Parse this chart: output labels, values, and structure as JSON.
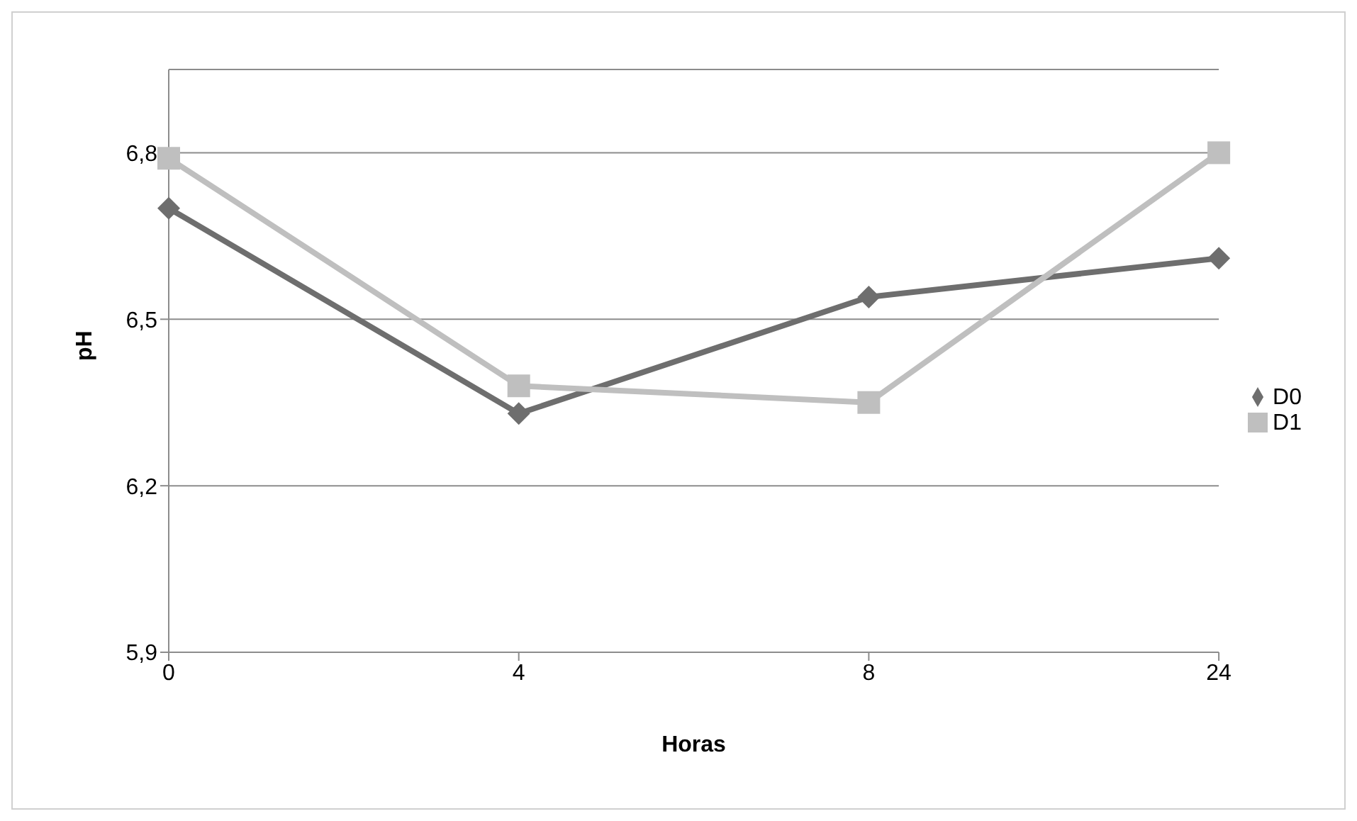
{
  "chart_data": {
    "type": "line",
    "xlabel": "Horas",
    "ylabel": "pH",
    "categories": [
      "0",
      "4",
      "8",
      "24"
    ],
    "series": [
      {
        "name": "D0",
        "color": "#6e6e6e",
        "marker": "diamond",
        "values": [
          6.7,
          6.33,
          6.54,
          6.61
        ]
      },
      {
        "name": "D1",
        "color": "#bfbfbf",
        "marker": "square",
        "values": [
          6.79,
          6.38,
          6.35,
          6.8
        ]
      }
    ],
    "ylim": [
      5.9,
      6.95
    ],
    "yticks": [
      {
        "value": 5.9,
        "label": "5,9"
      },
      {
        "value": 6.2,
        "label": "6,2"
      },
      {
        "value": 6.5,
        "label": "6,5"
      },
      {
        "value": 6.8,
        "label": "6,8"
      }
    ],
    "grid": "y",
    "legend": "right"
  }
}
